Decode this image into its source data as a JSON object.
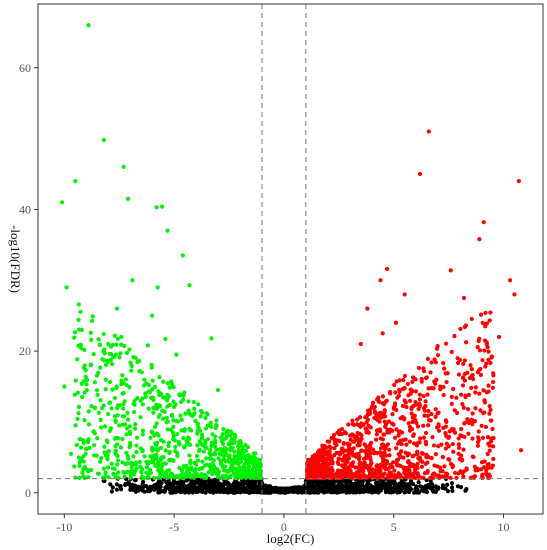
{
  "chart_data": {
    "type": "scatter",
    "xlabel": "log2(FC)",
    "ylabel": "-log10(FDR)",
    "xlim": [
      -11.2,
      11.8
    ],
    "ylim": [
      -3,
      69
    ],
    "x_ticks": [
      -10,
      -5,
      0,
      5,
      10
    ],
    "x_tick_labels": [
      "-10",
      "-5",
      "0",
      "5",
      "10"
    ],
    "y_ticks": [
      0,
      20,
      40,
      60
    ],
    "y_tick_labels": [
      "0",
      "20",
      "40",
      "60"
    ],
    "grid": false,
    "legend": "none",
    "thresholds": {
      "log2fc": [
        -1,
        1
      ],
      "neg_log10_fdr": 2
    },
    "colors": {
      "down": "#00ee00",
      "up": "#ff0000",
      "ns": "#000000",
      "threshold": "#777777",
      "frame": "#333333"
    },
    "series": [
      {
        "points": [
          [
            -8.9,
            66
          ],
          [
            -8.2,
            49.8
          ],
          [
            -7.3,
            46
          ],
          [
            -9.5,
            44
          ],
          [
            -7.1,
            41.5
          ],
          [
            -10.1,
            41
          ],
          [
            -5.8,
            40.3
          ],
          [
            -5.55,
            40.4
          ],
          [
            -5.3,
            37
          ],
          [
            -4.6,
            33.5
          ],
          [
            -9.9,
            29
          ],
          [
            -6.9,
            30
          ],
          [
            -5.75,
            29
          ],
          [
            -4.3,
            29.3
          ],
          [
            -7.6,
            26
          ],
          [
            -6.0,
            25
          ],
          [
            -9.2,
            23
          ],
          [
            -7.4,
            22
          ],
          [
            -5.4,
            21.7
          ],
          [
            -3.3,
            21.8
          ],
          [
            -8.0,
            21
          ],
          [
            -6.2,
            20.8
          ],
          [
            -4.9,
            19.5
          ],
          [
            -10.0,
            15
          ],
          [
            -9.7,
            5.5
          ],
          [
            -8.8,
            18
          ],
          [
            -7.2,
            16
          ],
          [
            -6.8,
            13
          ],
          [
            -5.1,
            11
          ],
          [
            -3.9,
            12.5
          ],
          [
            -3.0,
            14.5
          ],
          [
            -4.3,
            9
          ],
          [
            -6.0,
            8.5
          ],
          [
            -7.5,
            9.5
          ],
          [
            -8.6,
            12
          ]
        ]
      },
      {
        "points": [
          [
            6.6,
            51
          ],
          [
            10.7,
            44
          ],
          [
            6.2,
            45
          ],
          [
            9.1,
            38.2
          ],
          [
            8.9,
            35.8
          ],
          [
            4.7,
            31.6
          ],
          [
            4.4,
            30
          ],
          [
            7.6,
            31.4
          ],
          [
            10.3,
            30
          ],
          [
            5.5,
            28
          ],
          [
            8.2,
            27.5
          ],
          [
            10.5,
            28
          ],
          [
            3.8,
            26
          ],
          [
            9.8,
            22
          ],
          [
            4.5,
            22.5
          ],
          [
            5.1,
            24
          ],
          [
            7.0,
            20.7
          ],
          [
            3.5,
            21
          ],
          [
            10.8,
            6
          ],
          [
            9.5,
            9
          ],
          [
            8.5,
            18
          ],
          [
            6.0,
            16
          ],
          [
            4.0,
            12
          ],
          [
            7.4,
            10
          ],
          [
            8.9,
            14
          ]
        ]
      }
    ]
  }
}
